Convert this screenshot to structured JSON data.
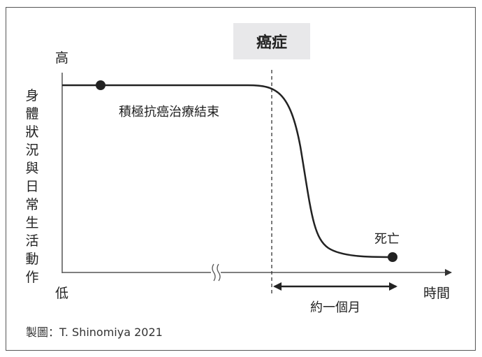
{
  "header": {
    "label": "癌症"
  },
  "axes": {
    "y_label": "身體狀況與日常生活動作",
    "y_high": "高",
    "y_low": "低",
    "x_label": "時間"
  },
  "annotations": {
    "treatment_end": "積極抗癌治療結束",
    "death": "死亡",
    "duration": "約一個月"
  },
  "credit": "製圖：T. Shinomiya 2021",
  "colors": {
    "line": "#222222",
    "box": "#e8e8ea",
    "frame": "#555555"
  }
}
